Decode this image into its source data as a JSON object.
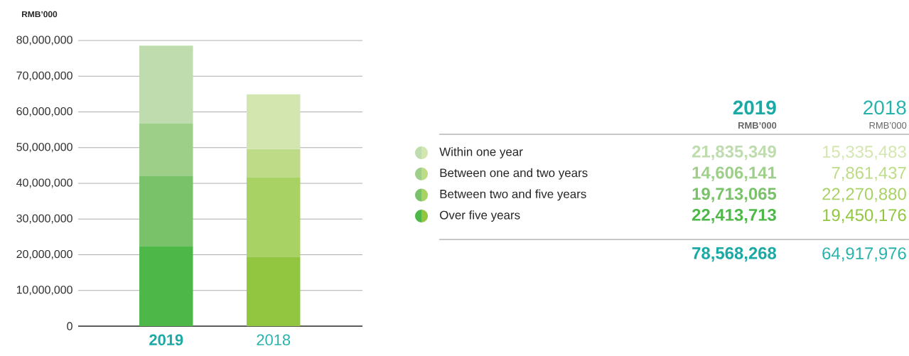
{
  "chart_data": {
    "type": "bar",
    "stacked": true,
    "ylabel": "RMB’000",
    "categories": [
      "2019",
      "2018"
    ],
    "series": [
      {
        "name": "Over five years",
        "colors": [
          "#4db848",
          "#92c640"
        ],
        "values": [
          22413713,
          19450176
        ]
      },
      {
        "name": "Between two and five years",
        "colors": [
          "#79c26a",
          "#a8d264"
        ],
        "values": [
          19713065,
          22270880
        ]
      },
      {
        "name": "Between one and two years",
        "colors": [
          "#9dcf89",
          "#bedb88"
        ],
        "values": [
          14606141,
          7861437
        ]
      },
      {
        "name": "Within one year",
        "colors": [
          "#bedcae",
          "#d3e6af"
        ],
        "values": [
          21835349,
          15335483
        ]
      }
    ],
    "annotations": [
      "RMB’000",
      "RMB’000",
      "78,568,268",
      "64,917,976",
      "22,413,713",
      "19,450,176",
      "19,713,065",
      "22,270,880",
      "14,606,141",
      "7,861,437",
      "21,835,349",
      "15,335,483"
    ],
    "ylim": [
      0,
      80000000
    ],
    "yticks": [
      {
        "value": 0,
        "label": "0"
      },
      {
        "value": 10000000,
        "label": "10,000,000"
      },
      {
        "value": 20000000,
        "label": "20,000,000"
      },
      {
        "value": 30000000,
        "label": "30,000,000"
      },
      {
        "value": 40000000,
        "label": "40,000,000"
      },
      {
        "value": 50000000,
        "label": "50,000,000"
      },
      {
        "value": 60000000,
        "label": "60,000,000"
      },
      {
        "value": 70000000,
        "label": "70,000,000"
      },
      {
        "value": 80000000,
        "label": "80,000,000"
      }
    ],
    "grid": "y",
    "legend": "right"
  }
}
